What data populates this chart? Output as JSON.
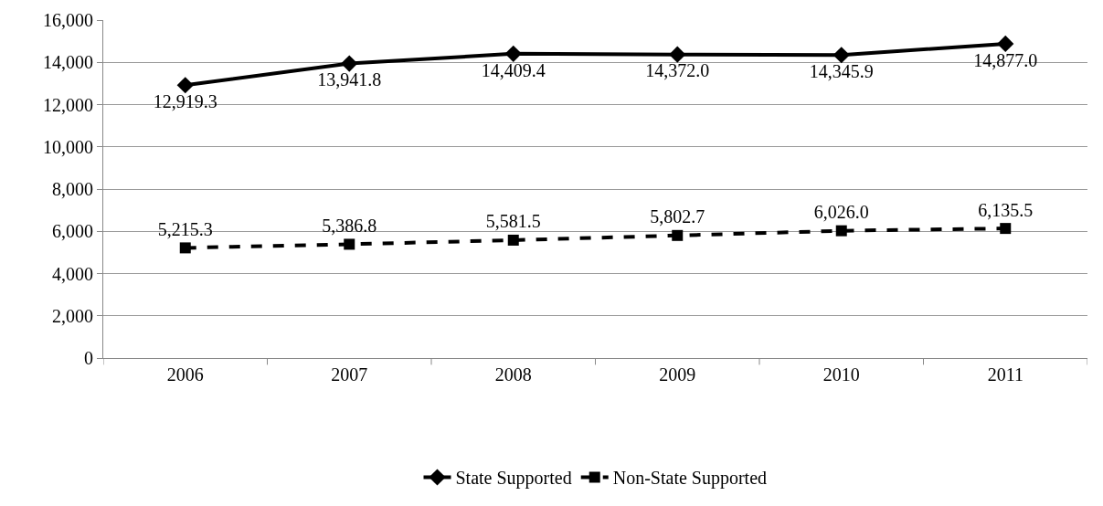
{
  "chart_data": {
    "type": "line",
    "categories": [
      "2006",
      "2007",
      "2008",
      "2009",
      "2010",
      "2011"
    ],
    "series": [
      {
        "name": "State Supported",
        "color": "#000000",
        "marker": "diamond",
        "line_style": "solid",
        "values": [
          12919.3,
          13941.8,
          14409.4,
          14372.0,
          14345.9,
          14877.0
        ],
        "value_labels": [
          "12,919.3",
          "13,941.8",
          "14,409.4",
          "14,372.0",
          "14,345.9",
          "14,877.0"
        ]
      },
      {
        "name": "Non-State Supported",
        "color": "#000000",
        "marker": "square",
        "line_style": "dashed",
        "values": [
          5215.3,
          5386.8,
          5581.5,
          5802.7,
          6026.0,
          6135.5
        ],
        "value_labels": [
          "5,215.3",
          "5,386.8",
          "5,581.5",
          "5,802.7",
          "6,026.0",
          "6,135.5"
        ]
      }
    ],
    "ylim": [
      0,
      16000
    ],
    "yticks": [
      {
        "value": 0,
        "label": "0"
      },
      {
        "value": 2000,
        "label": "2,000"
      },
      {
        "value": 4000,
        "label": "4,000"
      },
      {
        "value": 6000,
        "label": "6,000"
      },
      {
        "value": 8000,
        "label": "8,000"
      },
      {
        "value": 10000,
        "label": "10,000"
      },
      {
        "value": 12000,
        "label": "12,000"
      },
      {
        "value": 14000,
        "label": "14,000"
      },
      {
        "value": 16000,
        "label": "16,000"
      }
    ],
    "grid": "y",
    "legend": "bottom"
  }
}
